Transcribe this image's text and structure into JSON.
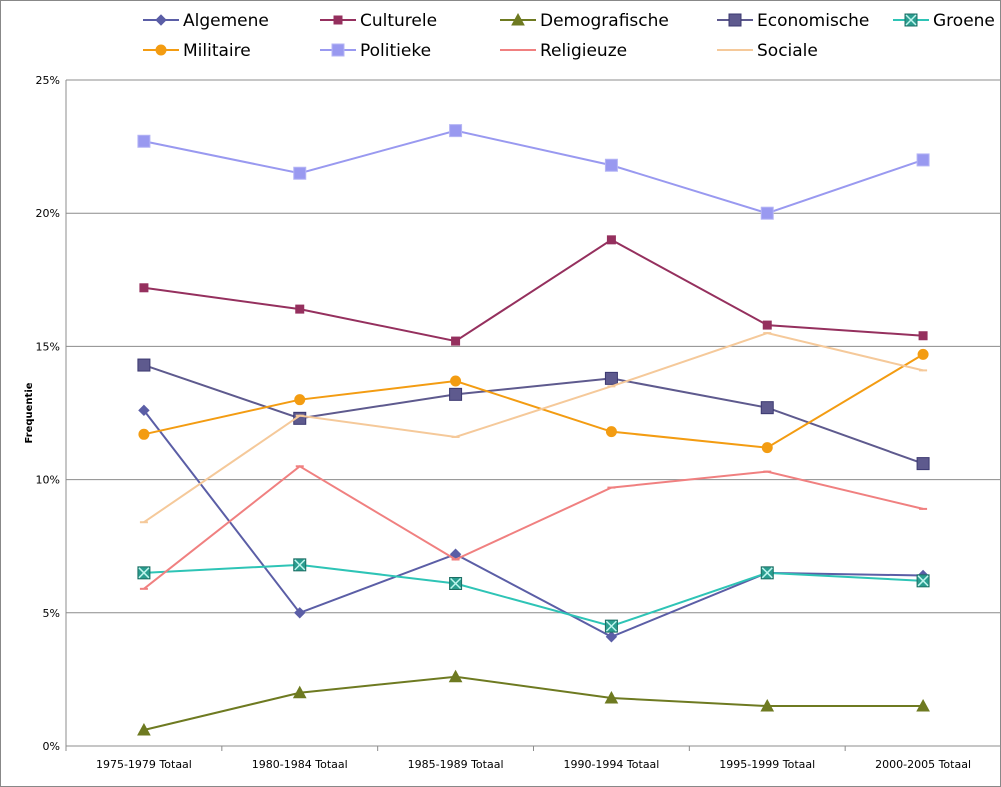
{
  "chart_data": {
    "type": "line",
    "title": "",
    "xlabel": "",
    "ylabel": "Frequentie",
    "ylim": [
      0,
      25
    ],
    "yticks": [
      {
        "value": 0,
        "label": "0%"
      },
      {
        "value": 5,
        "label": "5%"
      },
      {
        "value": 10,
        "label": "10%"
      },
      {
        "value": 15,
        "label": "15%"
      },
      {
        "value": 20,
        "label": "20%"
      },
      {
        "value": 25,
        "label": "25%"
      }
    ],
    "categories": [
      "1975-1979 Totaal",
      "1980-1984 Totaal",
      "1985-1989 Totaal",
      "1990-1994 Totaal",
      "1995-1999 Totaal",
      "2000-2005 Totaal"
    ],
    "grid": true,
    "legend_position": "top",
    "series": [
      {
        "name": "Algemene",
        "color": "#5B5EA6",
        "marker": "diamond",
        "values": [
          12.6,
          5.0,
          7.2,
          4.1,
          6.5,
          6.4
        ]
      },
      {
        "name": "Culturele",
        "color": "#95305E",
        "marker": "square",
        "values": [
          17.2,
          16.4,
          15.2,
          19.0,
          15.8,
          15.4
        ]
      },
      {
        "name": "Demografische",
        "color": "#6E7A21",
        "marker": "triangle",
        "values": [
          0.6,
          2.0,
          2.6,
          1.8,
          1.5,
          1.5
        ]
      },
      {
        "name": "Economische",
        "color": "#5E5A8E",
        "marker": "square-large",
        "values": [
          14.3,
          12.3,
          13.2,
          13.8,
          12.7,
          10.6
        ]
      },
      {
        "name": "Groene",
        "color": "#2EC4B6",
        "marker": "x-square",
        "values": [
          6.5,
          6.8,
          6.1,
          4.5,
          6.5,
          6.2
        ]
      },
      {
        "name": "Militaire",
        "color": "#F39C12",
        "marker": "circle",
        "values": [
          11.7,
          13.0,
          13.7,
          11.8,
          11.2,
          14.7
        ]
      },
      {
        "name": "Politieke",
        "color": "#9999F0",
        "marker": "square-light",
        "values": [
          22.7,
          21.5,
          23.1,
          21.8,
          20.0,
          22.0
        ]
      },
      {
        "name": "Religieuze",
        "color": "#F08080",
        "marker": "dash",
        "values": [
          5.9,
          10.5,
          7.0,
          9.7,
          10.3,
          8.9
        ]
      },
      {
        "name": "Sociale",
        "color": "#F5C99A",
        "marker": "dash",
        "values": [
          8.4,
          12.4,
          11.6,
          13.5,
          15.5,
          14.1
        ]
      }
    ]
  }
}
